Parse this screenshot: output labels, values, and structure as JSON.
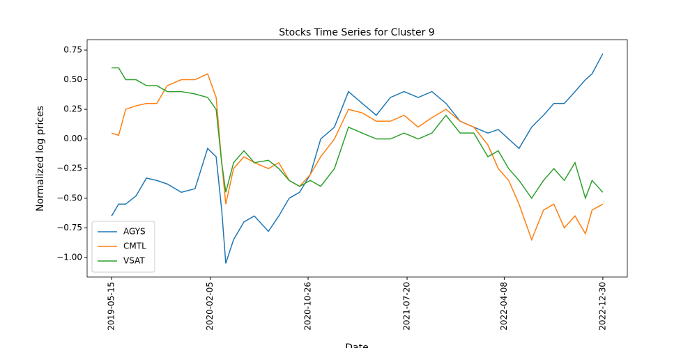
{
  "chart_data": {
    "type": "line",
    "title": "Stocks Time Series for Cluster 9",
    "x_label": "Date",
    "y_label": "Normalized log prices",
    "x": [
      "2019-05-15",
      "2019-06-03",
      "2019-06-22",
      "2019-07-20",
      "2019-08-17",
      "2019-09-14",
      "2019-10-12",
      "2019-11-19",
      "2019-12-26",
      "2020-01-29",
      "2020-02-21",
      "2020-03-07",
      "2020-03-18",
      "2020-04-08",
      "2020-05-06",
      "2020-06-03",
      "2020-07-11",
      "2020-08-08",
      "2020-09-05",
      "2020-10-03",
      "2020-11-01",
      "2020-11-29",
      "2021-01-05",
      "2021-02-12",
      "2021-03-21",
      "2021-04-28",
      "2021-06-05",
      "2021-07-12",
      "2021-08-19",
      "2021-09-25",
      "2021-11-02",
      "2021-12-10",
      "2022-01-16",
      "2022-02-23",
      "2022-03-23",
      "2022-04-20",
      "2022-05-18",
      "2022-06-21",
      "2022-07-23",
      "2022-08-20",
      "2022-09-17",
      "2022-10-16",
      "2022-11-13",
      "2022-12-01",
      "2022-12-30"
    ],
    "series": [
      {
        "name": "AGYS",
        "color": "#1f77b4",
        "values": [
          -0.65,
          -0.55,
          -0.55,
          -0.48,
          -0.33,
          -0.35,
          -0.38,
          -0.45,
          -0.42,
          -0.08,
          -0.15,
          -0.6,
          -1.05,
          -0.85,
          -0.7,
          -0.65,
          -0.78,
          -0.65,
          -0.5,
          -0.45,
          -0.3,
          0,
          0.1,
          0.4,
          0.3,
          0.2,
          0.35,
          0.4,
          0.35,
          0.4,
          0.3,
          0.15,
          0.1,
          0.05,
          0.08,
          0,
          -0.08,
          0.1,
          0.2,
          0.3,
          0.3,
          0.4,
          0.5,
          0.55,
          0.72
        ]
      },
      {
        "name": "CMTL",
        "color": "#ff7f0e",
        "values": [
          0.05,
          0.03,
          0.25,
          0.28,
          0.3,
          0.3,
          0.45,
          0.5,
          0.5,
          0.55,
          0.35,
          -0.2,
          -0.55,
          -0.25,
          -0.15,
          -0.2,
          -0.25,
          -0.2,
          -0.35,
          -0.4,
          -0.3,
          -0.15,
          0,
          0.25,
          0.22,
          0.15,
          0.15,
          0.2,
          0.1,
          0.18,
          0.25,
          0.15,
          0.1,
          -0.05,
          -0.25,
          -0.35,
          -0.55,
          -0.85,
          -0.6,
          -0.55,
          -0.75,
          -0.65,
          -0.8,
          -0.6,
          -0.55
        ]
      },
      {
        "name": "VSAT",
        "color": "#2ca02c",
        "values": [
          0.6,
          0.6,
          0.5,
          0.5,
          0.45,
          0.45,
          0.4,
          0.4,
          0.38,
          0.35,
          0.25,
          -0.2,
          -0.45,
          -0.2,
          -0.1,
          -0.2,
          -0.18,
          -0.25,
          -0.35,
          -0.4,
          -0.35,
          -0.4,
          -0.25,
          0.1,
          0.05,
          0,
          0,
          0.05,
          0,
          0.05,
          0.2,
          0.05,
          0.05,
          -0.15,
          -0.1,
          -0.25,
          -0.35,
          -0.5,
          -0.35,
          -0.25,
          -0.35,
          -0.2,
          -0.5,
          -0.35,
          -0.45
        ]
      }
    ],
    "xlim": [
      "2019-03-10",
      "2023-03-06"
    ],
    "xticks": [
      "2019-05-15",
      "2020-02-05",
      "2020-10-26",
      "2021-07-20",
      "2022-04-08",
      "2022-12-30"
    ],
    "ylim": [
      -1.165,
      0.838
    ],
    "yticks": [
      {
        "value": -1,
        "label": "−1.00"
      },
      {
        "value": -0.75,
        "label": "−0.75"
      },
      {
        "value": -0.5,
        "label": "−0.50"
      },
      {
        "value": -0.25,
        "label": "−0.25"
      },
      {
        "value": 0,
        "label": "0.00"
      },
      0.25,
      {
        "value": 0.5,
        "label": "0.50"
      },
      0.75
    ],
    "legend": "lower left",
    "grid": false
  }
}
